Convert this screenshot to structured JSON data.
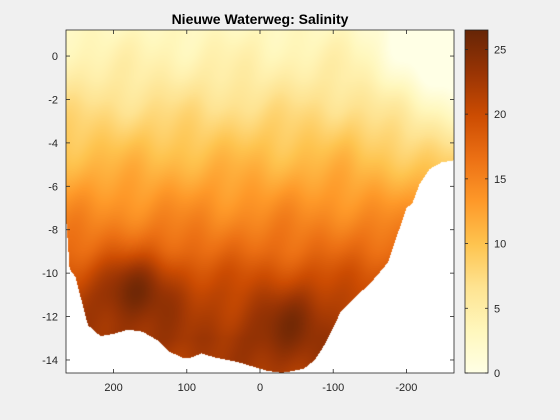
{
  "chart_data": {
    "type": "heatmap",
    "title": "Nieuwe Waterweg: Salinity",
    "xlabel": "",
    "ylabel": "",
    "xlim": [
      265,
      -265
    ],
    "ylim": [
      -14.6,
      1.2
    ],
    "x_reversed": true,
    "x_ticks": [
      200,
      100,
      0,
      -100,
      -200
    ],
    "x_tick_labels": [
      "200",
      "100",
      "0",
      "-100",
      "-200"
    ],
    "y_ticks": [
      0,
      -2,
      -4,
      -6,
      -8,
      -10,
      -12,
      -14
    ],
    "y_tick_labels": [
      "0",
      "-2",
      "-4",
      "-6",
      "-8",
      "-10",
      "-12",
      "-14"
    ],
    "colorbar": {
      "range": [
        0,
        26.5
      ],
      "ticks": [
        0,
        5,
        10,
        15,
        20,
        25
      ],
      "tick_labels": [
        "0",
        "5",
        "10",
        "15",
        "20",
        "25"
      ],
      "colormap": "YlOrBr"
    },
    "bottom_profile": {
      "x": [
        265,
        260,
        252,
        235,
        218,
        200,
        180,
        160,
        140,
        125,
        105,
        95,
        80,
        60,
        30,
        10,
        -10,
        -30,
        -45,
        -60,
        -75,
        -90,
        -110,
        -130,
        -150,
        -175,
        -200,
        -208,
        -218,
        -232,
        -248,
        -265
      ],
      "depth": [
        -7.4,
        -9.8,
        -10.2,
        -12.4,
        -12.9,
        -12.8,
        -12.6,
        -12.7,
        -13.1,
        -13.6,
        -13.9,
        -13.9,
        -13.7,
        -13.9,
        -14.1,
        -14.3,
        -14.5,
        -14.6,
        -14.5,
        -14.4,
        -14.0,
        -13.2,
        -11.8,
        -11.1,
        -10.5,
        -9.5,
        -7.0,
        -6.8,
        -5.9,
        -5.2,
        -4.9,
        -4.8
      ]
    },
    "salinity_by_depth": {
      "depth": [
        1.2,
        0,
        -1,
        -2,
        -3,
        -4,
        -5,
        -6,
        -7,
        -8,
        -9,
        -10,
        -11,
        -12,
        -13,
        -14.6
      ],
      "salinity": [
        3,
        4,
        5,
        6.5,
        8,
        9.5,
        11,
        12.5,
        14,
        15.5,
        17,
        19,
        20.5,
        21.5,
        22.5,
        22
      ]
    },
    "salinity_maxima": [
      {
        "x": 170,
        "depth": -11.0,
        "value": 26
      },
      {
        "x": -40,
        "depth": -12.5,
        "value": 25
      }
    ],
    "fresh_lens": {
      "x": -255,
      "depth": 0.5,
      "value": 1.5
    }
  }
}
